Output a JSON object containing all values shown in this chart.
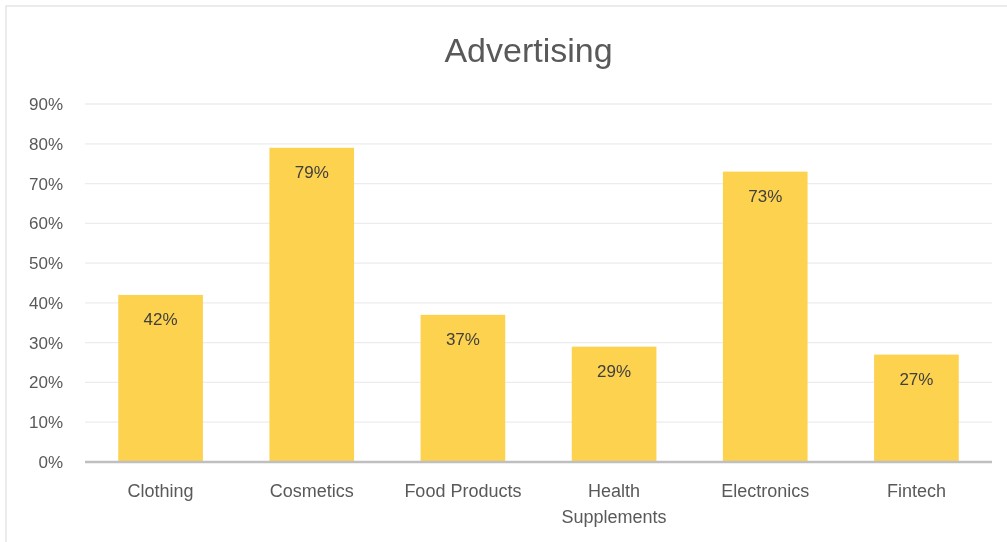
{
  "chart_data": {
    "type": "bar",
    "title": "Advertising",
    "categories": [
      "Clothing",
      "Cosmetics",
      "Food Products",
      "Health Supplements",
      "Electronics",
      "Fintech"
    ],
    "values": [
      42,
      79,
      37,
      29,
      73,
      27
    ],
    "value_labels": [
      "42%",
      "79%",
      "37%",
      "29%",
      "73%",
      "27%"
    ],
    "color": "#fdd24f",
    "ylim": [
      0,
      90
    ],
    "yticks": [
      {
        "value": 0,
        "label": "0%"
      },
      {
        "value": 10,
        "label": "10%"
      },
      {
        "value": 20,
        "label": "20%"
      },
      {
        "value": 30,
        "label": "30%"
      },
      {
        "value": 40,
        "label": "40%"
      },
      {
        "value": 50,
        "label": "50%"
      },
      {
        "value": 60,
        "label": "60%"
      },
      {
        "value": 70,
        "label": "70%"
      },
      {
        "value": 80,
        "label": "80%"
      },
      {
        "value": 90,
        "label": "90%"
      }
    ],
    "grid": "y"
  }
}
